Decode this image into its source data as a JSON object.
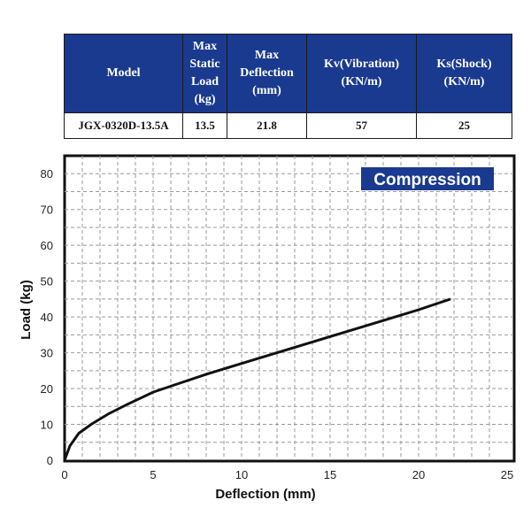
{
  "table": {
    "headers": [
      "Model",
      "Max\nStatic\nLoad\n(kg)",
      "Max\nDeflection\n(mm)",
      "Kv(Vibration)\n(KN/m)",
      "Ks(Shock)\n(KN/m)"
    ],
    "row": [
      "JGX-0320D-13.5A",
      "13.5",
      "21.8",
      "57",
      "25"
    ]
  },
  "chart_data": {
    "type": "line",
    "badge": "Compression",
    "xlabel": "Deflection (mm)",
    "ylabel": "Load (kg)",
    "xlim": [
      0,
      25
    ],
    "ylim": [
      0,
      85
    ],
    "xticks": [
      0,
      5,
      10,
      15,
      20,
      25
    ],
    "yticks": [
      0,
      10,
      20,
      30,
      40,
      50,
      60,
      70,
      80
    ],
    "grid": true,
    "series": [
      {
        "color": "#111111",
        "x": [
          0,
          0.3,
          0.8,
          1.5,
          2.5,
          3.5,
          5,
          6.5,
          8,
          10,
          12,
          14,
          16,
          18,
          20,
          21.8
        ],
        "y": [
          0,
          4,
          7.5,
          10,
          13,
          15.5,
          19,
          21.5,
          24,
          27,
          30,
          33,
          36,
          39,
          42,
          45
        ]
      }
    ],
    "colors": {
      "badge_bg": "#1a3a8f",
      "header_bg": "#1a3a8f",
      "grid": "#999999"
    }
  }
}
